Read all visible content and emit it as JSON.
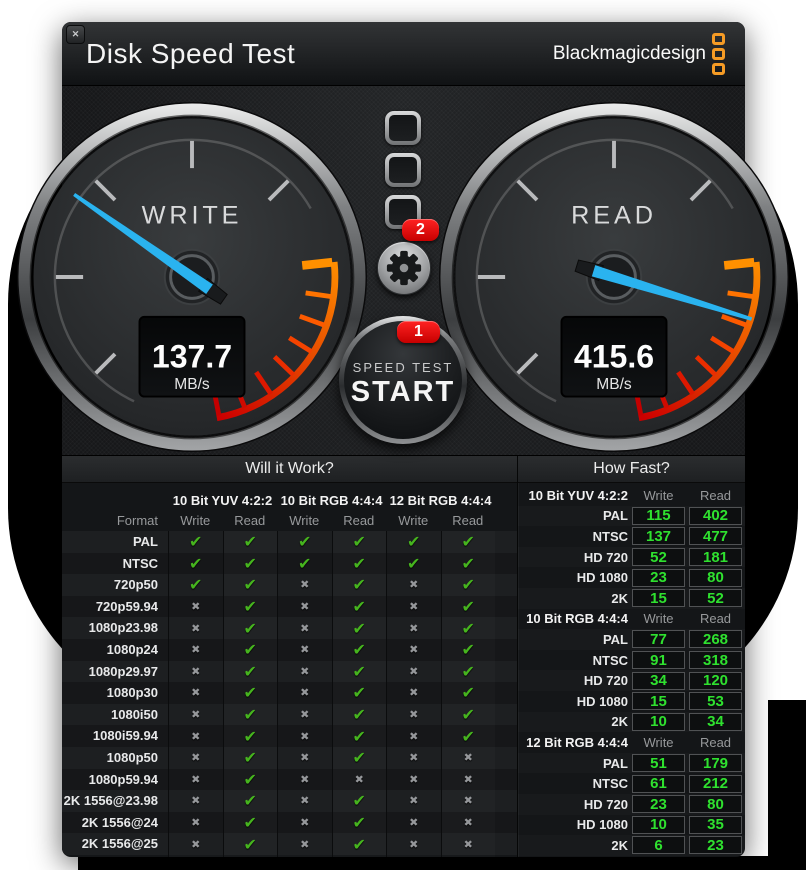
{
  "window": {
    "title": "Disk Speed Test",
    "brand": "Blackmagicdesign",
    "close_label": "✕"
  },
  "gauges": {
    "write": {
      "label": "WRITE",
      "value": "137.7",
      "unit": "MB/s",
      "needle_angle_deg": 145
    },
    "read": {
      "label": "READ",
      "value": "415.6",
      "unit": "MB/s",
      "needle_angle_deg": -17
    }
  },
  "controls": {
    "settings_badge": "2",
    "start_badge": "1",
    "start_sub_label": "SPEED TEST",
    "start_label": "START",
    "gear_icon": "gear",
    "indicator_lights": 3
  },
  "will_it_work": {
    "title": "Will it Work?",
    "format_header": "Format",
    "groups": [
      {
        "label": "10 Bit YUV 4:2:2"
      },
      {
        "label": "10 Bit RGB 4:4:4"
      },
      {
        "label": "12 Bit RGB 4:4:4"
      }
    ],
    "sub_headers": [
      "Write",
      "Read"
    ],
    "rows": [
      {
        "format": "PAL",
        "marks": [
          1,
          1,
          1,
          1,
          1,
          1
        ]
      },
      {
        "format": "NTSC",
        "marks": [
          1,
          1,
          1,
          1,
          1,
          1
        ]
      },
      {
        "format": "720p50",
        "marks": [
          1,
          1,
          0,
          1,
          0,
          1
        ]
      },
      {
        "format": "720p59.94",
        "marks": [
          0,
          1,
          0,
          1,
          0,
          1
        ]
      },
      {
        "format": "1080p23.98",
        "marks": [
          0,
          1,
          0,
          1,
          0,
          1
        ]
      },
      {
        "format": "1080p24",
        "marks": [
          0,
          1,
          0,
          1,
          0,
          1
        ]
      },
      {
        "format": "1080p29.97",
        "marks": [
          0,
          1,
          0,
          1,
          0,
          1
        ]
      },
      {
        "format": "1080p30",
        "marks": [
          0,
          1,
          0,
          1,
          0,
          1
        ]
      },
      {
        "format": "1080i50",
        "marks": [
          0,
          1,
          0,
          1,
          0,
          1
        ]
      },
      {
        "format": "1080i59.94",
        "marks": [
          0,
          1,
          0,
          1,
          0,
          1
        ]
      },
      {
        "format": "1080p50",
        "marks": [
          0,
          1,
          0,
          1,
          0,
          0
        ]
      },
      {
        "format": "1080p59.94",
        "marks": [
          0,
          1,
          0,
          0,
          0,
          0
        ]
      },
      {
        "format": "2K 1556@23.98",
        "marks": [
          0,
          1,
          0,
          1,
          0,
          0
        ]
      },
      {
        "format": "2K 1556@24",
        "marks": [
          0,
          1,
          0,
          1,
          0,
          0
        ]
      },
      {
        "format": "2K 1556@25",
        "marks": [
          0,
          1,
          0,
          1,
          0,
          0
        ]
      }
    ]
  },
  "how_fast": {
    "title": "How Fast?",
    "col_headers": [
      "Write",
      "Read"
    ],
    "sections": [
      {
        "label": "10 Bit YUV 4:2:2",
        "rows": [
          {
            "format": "PAL",
            "write": "115",
            "read": "402"
          },
          {
            "format": "NTSC",
            "write": "137",
            "read": "477"
          },
          {
            "format": "HD 720",
            "write": "52",
            "read": "181"
          },
          {
            "format": "HD 1080",
            "write": "23",
            "read": "80"
          },
          {
            "format": "2K",
            "write": "15",
            "read": "52"
          }
        ]
      },
      {
        "label": "10 Bit RGB 4:4:4",
        "rows": [
          {
            "format": "PAL",
            "write": "77",
            "read": "268"
          },
          {
            "format": "NTSC",
            "write": "91",
            "read": "318"
          },
          {
            "format": "HD 720",
            "write": "34",
            "read": "120"
          },
          {
            "format": "HD 1080",
            "write": "15",
            "read": "53"
          },
          {
            "format": "2K",
            "write": "10",
            "read": "34"
          }
        ]
      },
      {
        "label": "12 Bit RGB 4:4:4",
        "rows": [
          {
            "format": "PAL",
            "write": "51",
            "read": "179"
          },
          {
            "format": "NTSC",
            "write": "61",
            "read": "212"
          },
          {
            "format": "HD 720",
            "write": "23",
            "read": "80"
          },
          {
            "format": "HD 1080",
            "write": "10",
            "read": "35"
          },
          {
            "format": "2K",
            "write": "6",
            "read": "23"
          }
        ]
      }
    ]
  },
  "marks_glyphs": {
    "check": "✔",
    "cross": "✖"
  },
  "colors": {
    "needle_blue": "#2ab3ef",
    "check_green": "#46b41e",
    "value_green": "#2fe12f",
    "badge_red": "#d60000",
    "brand_orange": "#f59b25",
    "redzone_start": "#ff9000",
    "redzone_end": "#cc0000"
  }
}
